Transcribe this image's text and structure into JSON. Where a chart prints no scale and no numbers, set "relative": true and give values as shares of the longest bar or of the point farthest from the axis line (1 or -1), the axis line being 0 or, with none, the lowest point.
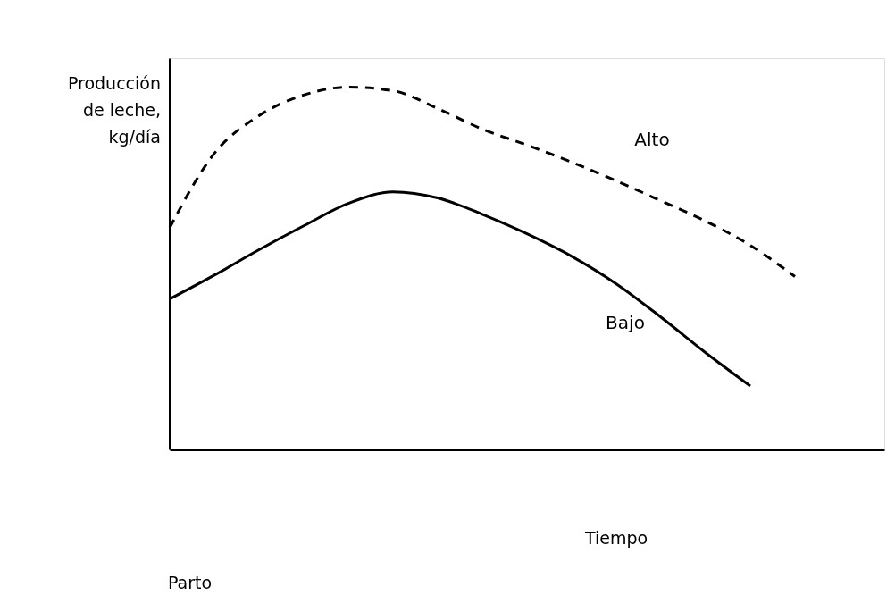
{
  "chart_data": {
    "type": "line",
    "relative": true,
    "xlabel": "Tiempo",
    "ylabel": "Producción de leche, kg/día",
    "categories": [
      null,
      null,
      null,
      null,
      null,
      null,
      null,
      null,
      null,
      null,
      null,
      null,
      null,
      null,
      null,
      null,
      null
    ],
    "series": [
      {
        "name": "Alto",
        "color": "#000000",
        "line_style": "dashed",
        "values": [
          0.612,
          0.817,
          0.921,
          0.978,
          1,
          0.99,
          0.941,
          0.884,
          0.84,
          0.793,
          0.741,
          0.686,
          0.63,
          0.563,
          0.477,
          null,
          null
        ]
      },
      {
        "name": "Bajo",
        "color": "#000000",
        "line_style": "solid",
        "values": [
          0.415,
          0.481,
          0.551,
          0.617,
          0.679,
          0.711,
          0.694,
          0.649,
          0.595,
          0.533,
          0.457,
          0.365,
          0.267,
          0.175,
          null,
          null,
          null
        ]
      }
    ],
    "annotations": [
      "Parto"
    ],
    "marker": "none",
    "grid": false
  }
}
